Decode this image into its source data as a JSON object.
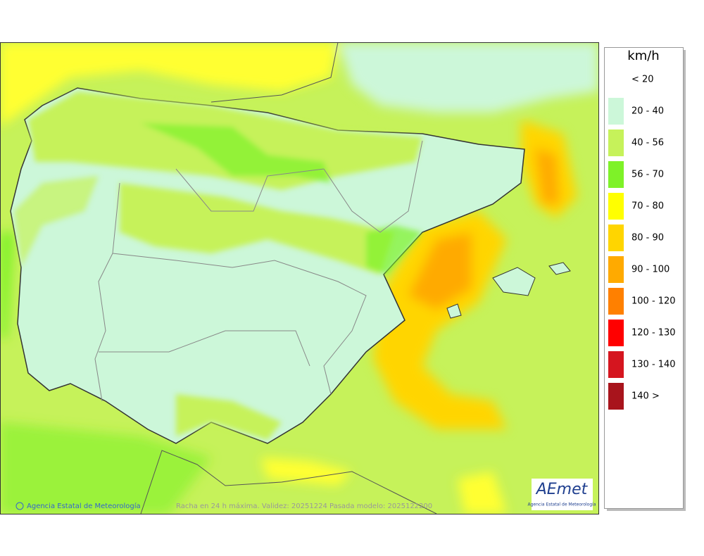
{
  "legend": {
    "unit": "km/h",
    "items": [
      {
        "label": "< 20",
        "color": "#ffffff"
      },
      {
        "label": "20 - 40",
        "color": "#ccf7d9"
      },
      {
        "label": "40 - 56",
        "color": "#c6f25a"
      },
      {
        "label": "56 - 70",
        "color": "#7ef228"
      },
      {
        "label": "70 - 80",
        "color": "#ffff00"
      },
      {
        "label": "80 - 90",
        "color": "#ffd500"
      },
      {
        "label": "90 - 100",
        "color": "#ffaa00"
      },
      {
        "label": "100 - 120",
        "color": "#ff8000"
      },
      {
        "label": "120 - 130",
        "color": "#ff0000"
      },
      {
        "label": "130 - 140",
        "color": "#d5151f"
      },
      {
        "label": "140 >",
        "color": "#a8141c"
      }
    ]
  },
  "footer": {
    "credit": "Agencia Estatal de Meteorología",
    "caption": "Racha en 24 h máxima. Validez: 20251224 Pasada modelo: 2025122200"
  },
  "logo": {
    "name": "AEmet",
    "subtitle": "Agencia Estatal de Meteorología"
  }
}
